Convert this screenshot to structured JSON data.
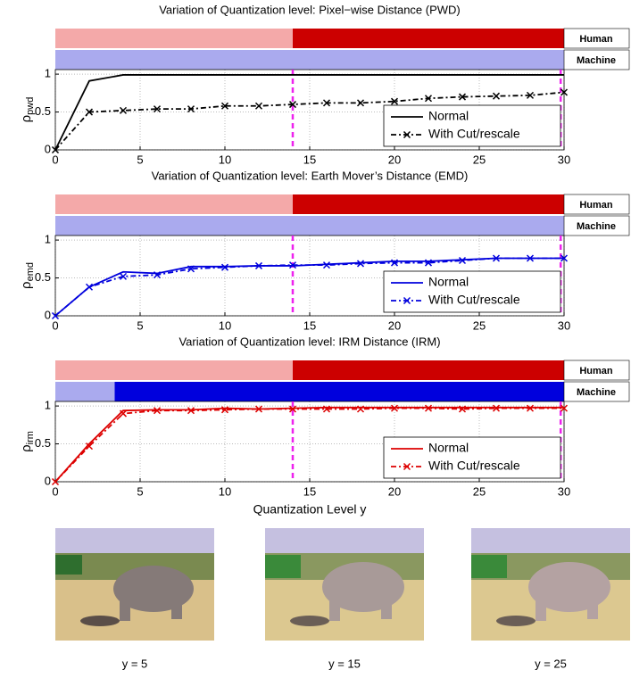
{
  "chart_data": [
    {
      "type": "line",
      "title": "Variation of Quantization level: Pixel−wise Distance (PWD)",
      "ylabel": {
        "symbol": "ρ",
        "subscript": "pwd"
      },
      "x": [
        0,
        2,
        4,
        6,
        8,
        10,
        12,
        14,
        16,
        18,
        20,
        22,
        24,
        26,
        28,
        30
      ],
      "series": [
        {
          "name": "Normal",
          "color": "#000000",
          "linestyle": "solid",
          "marker": "none",
          "values": [
            0,
            0.91,
            0.99,
            0.99,
            0.99,
            0.99,
            0.99,
            0.99,
            0.99,
            0.99,
            0.99,
            0.99,
            0.99,
            0.99,
            0.99,
            0.99
          ]
        },
        {
          "name": "With Cut/rescale",
          "color": "#000000",
          "linestyle": "dashdot",
          "marker": "x",
          "values": [
            0,
            0.5,
            0.52,
            0.54,
            0.54,
            0.58,
            0.58,
            0.6,
            0.62,
            0.62,
            0.64,
            0.68,
            0.7,
            0.71,
            0.72,
            0.76
          ]
        }
      ],
      "xlim": [
        0,
        30
      ],
      "ylim": [
        0,
        1.06
      ],
      "xticks": [
        0,
        5,
        10,
        15,
        20,
        25,
        30
      ],
      "yticks": [
        0,
        0.5,
        1
      ],
      "grid": true,
      "legend": "lower right",
      "vlines": [
        14,
        29.8
      ],
      "vline_color": "#ee22ee",
      "bands": [
        {
          "name": "Human",
          "split": 14,
          "color_light": "#f4a9a9",
          "color_dark": "#cc0000",
          "text_color": "#dd0000"
        },
        {
          "name": "Machine",
          "split": 30,
          "color_light": "#aaaaee",
          "color_dark": "#0000dd",
          "text_color": "#0000dd"
        }
      ]
    },
    {
      "type": "line",
      "title": "Variation of Quantization level: Earth Mover’s Distance (EMD)",
      "ylabel": {
        "symbol": "ρ",
        "subscript": "emd"
      },
      "x": [
        0,
        2,
        4,
        6,
        8,
        10,
        12,
        14,
        16,
        18,
        20,
        22,
        24,
        26,
        28,
        30
      ],
      "series": [
        {
          "name": "Normal",
          "color": "#0000dd",
          "linestyle": "solid",
          "marker": "none",
          "values": [
            0,
            0.38,
            0.58,
            0.56,
            0.65,
            0.65,
            0.66,
            0.66,
            0.68,
            0.7,
            0.72,
            0.72,
            0.74,
            0.76,
            0.76,
            0.76
          ]
        },
        {
          "name": "With Cut/rescale",
          "color": "#0000dd",
          "linestyle": "dashdot",
          "marker": "x",
          "values": [
            0,
            0.38,
            0.52,
            0.54,
            0.62,
            0.64,
            0.66,
            0.67,
            0.67,
            0.69,
            0.7,
            0.7,
            0.73,
            0.76,
            0.76,
            0.76
          ]
        }
      ],
      "xlim": [
        0,
        30
      ],
      "ylim": [
        0,
        1.06
      ],
      "xticks": [
        0,
        5,
        10,
        15,
        20,
        25,
        30
      ],
      "yticks": [
        0,
        0.5,
        1
      ],
      "grid": true,
      "legend": "lower right",
      "vlines": [
        14,
        29.8
      ],
      "vline_color": "#ee22ee",
      "bands": [
        {
          "name": "Human",
          "split": 14,
          "color_light": "#f4a9a9",
          "color_dark": "#cc0000",
          "text_color": "#dd0000"
        },
        {
          "name": "Machine",
          "split": 30,
          "color_light": "#aaaaee",
          "color_dark": "#0000dd",
          "text_color": "#0000dd"
        }
      ]
    },
    {
      "type": "line",
      "title": "Variation of Quantization level: IRM Distance (IRM)",
      "ylabel": {
        "symbol": "ρ",
        "subscript": "irm"
      },
      "xlabel": "Quantization Level y",
      "x": [
        0,
        2,
        4,
        6,
        8,
        10,
        12,
        14,
        16,
        18,
        20,
        22,
        24,
        26,
        28,
        30
      ],
      "series": [
        {
          "name": "Normal",
          "color": "#dd0000",
          "linestyle": "solid",
          "marker": "none",
          "values": [
            0,
            0.5,
            0.94,
            0.95,
            0.95,
            0.97,
            0.96,
            0.97,
            0.98,
            0.98,
            0.98,
            0.98,
            0.98,
            0.98,
            0.98,
            0.98
          ]
        },
        {
          "name": "With Cut/rescale",
          "color": "#dd0000",
          "linestyle": "dashdot",
          "marker": "x",
          "values": [
            0,
            0.47,
            0.9,
            0.94,
            0.94,
            0.95,
            0.96,
            0.96,
            0.96,
            0.96,
            0.97,
            0.97,
            0.96,
            0.97,
            0.97,
            0.97
          ]
        }
      ],
      "xlim": [
        0,
        30
      ],
      "ylim": [
        0,
        1.06
      ],
      "xticks": [
        0,
        5,
        10,
        15,
        20,
        25,
        30
      ],
      "yticks": [
        0,
        0.5,
        1
      ],
      "grid": true,
      "legend": "lower right",
      "vlines": [
        14,
        29.8
      ],
      "vline_color": "#ee22ee",
      "bands": [
        {
          "name": "Human",
          "split": 14,
          "color_light": "#f4a9a9",
          "color_dark": "#cc0000",
          "text_color": "#dd0000"
        },
        {
          "name": "Machine",
          "split": 3.5,
          "color_light": "#aaaaee",
          "color_dark": "#0000dd",
          "text_color": "#0000dd"
        }
      ]
    }
  ],
  "image_captions": [
    "y = 5",
    "y = 15",
    "y = 25"
  ]
}
